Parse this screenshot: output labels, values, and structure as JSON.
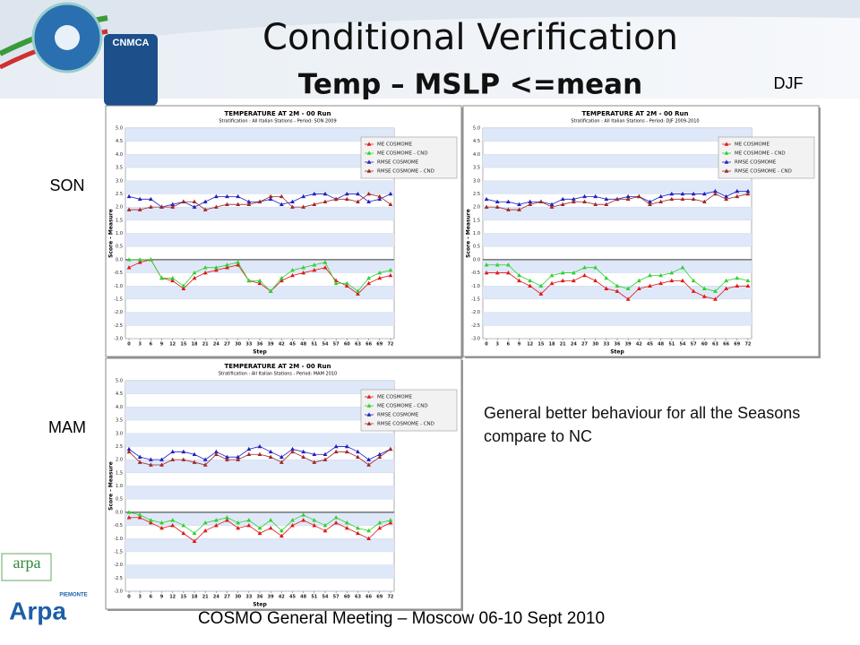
{
  "slide": {
    "title": "Conditional Verification",
    "subtitle": "Temp – MSLP <=mean",
    "labels": {
      "djf": "DJF",
      "son": "SON",
      "mam": "MAM"
    },
    "note": "General better behaviour for all the Seasons compare to NC",
    "footer": "COSMO General Meeting – Moscow 06-10 Sept 2010",
    "logos": {
      "cnmca": "CNMCA",
      "arpa": "arpa",
      "arpa_piemonte": "Arpa",
      "piemonte": "PIEMONTE"
    }
  },
  "chart_data": [
    {
      "type": "line",
      "title": "TEMPERATURE AT 2M - 00 Run",
      "subtitle": "Stratification : All Italian Stations - Period: SON 2009",
      "x_label": "Step",
      "y_label": "Score - Measure",
      "x": [
        0,
        3,
        6,
        9,
        12,
        15,
        18,
        21,
        24,
        27,
        30,
        33,
        36,
        39,
        42,
        45,
        48,
        51,
        54,
        57,
        60,
        63,
        66,
        69,
        72
      ],
      "xticks": [
        0,
        3,
        6,
        9,
        12,
        15,
        18,
        21,
        24,
        27,
        30,
        33,
        36,
        39,
        42,
        45,
        48,
        51,
        54,
        57,
        60,
        63,
        66,
        69,
        72
      ],
      "xlim": [
        -1,
        73
      ],
      "ylim": [
        -3,
        5
      ],
      "yticks": [
        {
          "value": -3,
          "label": "-3.0"
        },
        {
          "value": -2.5,
          "label": "-2.5"
        },
        {
          "value": -2,
          "label": "-2.0"
        },
        {
          "value": -1.5,
          "label": "-1.5"
        },
        {
          "value": -1,
          "label": "-1.0"
        },
        {
          "value": -0.5,
          "label": "-0.5"
        },
        {
          "value": 0,
          "label": "0.0"
        },
        {
          "value": 0.5,
          "label": "0.5"
        },
        {
          "value": 1,
          "label": "1.0"
        },
        {
          "value": 1.5,
          "label": "1.5"
        },
        {
          "value": 2,
          "label": "2.0"
        },
        {
          "value": 2.5,
          "label": "2.5"
        },
        {
          "value": 3,
          "label": "3.0"
        },
        {
          "value": 3.5,
          "label": "3.5"
        },
        {
          "value": 4,
          "label": "4.0"
        },
        {
          "value": 4.5,
          "label": "4.5"
        },
        {
          "value": 5,
          "label": "5.0"
        }
      ],
      "series": [
        {
          "name": "ME COSMOME",
          "color": "#e01818",
          "values": [
            -0.3,
            -0.1,
            0.0,
            -0.7,
            -0.8,
            -1.1,
            -0.7,
            -0.5,
            -0.4,
            -0.3,
            -0.2,
            -0.8,
            -0.9,
            -1.2,
            -0.8,
            -0.6,
            -0.5,
            -0.4,
            -0.3,
            -0.8,
            -1.0,
            -1.3,
            -0.9,
            -0.7,
            -0.6
          ]
        },
        {
          "name": "ME COSMOME - CND",
          "color": "#30d030",
          "values": [
            0.0,
            0.0,
            0.0,
            -0.7,
            -0.7,
            -1.0,
            -0.5,
            -0.3,
            -0.3,
            -0.2,
            -0.1,
            -0.8,
            -0.8,
            -1.2,
            -0.7,
            -0.4,
            -0.3,
            -0.2,
            -0.1,
            -0.9,
            -0.9,
            -1.2,
            -0.7,
            -0.5,
            -0.4
          ]
        },
        {
          "name": "RMSE COSMOME",
          "color": "#2020c0",
          "values": [
            2.4,
            2.3,
            2.3,
            2.0,
            2.1,
            2.2,
            2.0,
            2.2,
            2.4,
            2.4,
            2.4,
            2.2,
            2.2,
            2.3,
            2.1,
            2.2,
            2.4,
            2.5,
            2.5,
            2.3,
            2.5,
            2.5,
            2.2,
            2.3,
            2.5
          ]
        },
        {
          "name": "RMSE COSMOME - CND",
          "color": "#a02828",
          "values": [
            1.9,
            1.9,
            2.0,
            2.0,
            2.0,
            2.2,
            2.2,
            1.9,
            2.0,
            2.1,
            2.1,
            2.1,
            2.2,
            2.4,
            2.4,
            2.0,
            2.0,
            2.1,
            2.2,
            2.3,
            2.3,
            2.2,
            2.5,
            2.4,
            2.1
          ]
        }
      ]
    },
    {
      "type": "line",
      "title": "TEMPERATURE AT 2M - 00 Run",
      "subtitle": "Stratification : All Italian Stations - Period: DJF 2009-2010",
      "x_label": "Step",
      "y_label": "Score - Measure",
      "x": [
        0,
        3,
        6,
        9,
        12,
        15,
        18,
        21,
        24,
        27,
        30,
        33,
        36,
        39,
        42,
        45,
        48,
        51,
        54,
        57,
        60,
        63,
        66,
        69,
        72
      ],
      "xticks": [
        0,
        3,
        6,
        9,
        12,
        15,
        18,
        21,
        24,
        27,
        30,
        33,
        36,
        39,
        42,
        45,
        48,
        51,
        54,
        57,
        60,
        63,
        66,
        69,
        72
      ],
      "xlim": [
        -1,
        73
      ],
      "ylim": [
        -3,
        5
      ],
      "yticks": [
        {
          "value": -3,
          "label": "-3.0"
        },
        {
          "value": -2.5,
          "label": "-2.5"
        },
        {
          "value": -2,
          "label": "-2.0"
        },
        {
          "value": -1.5,
          "label": "-1.5"
        },
        {
          "value": -1,
          "label": "-1.0"
        },
        {
          "value": -0.5,
          "label": "-0.5"
        },
        {
          "value": 0,
          "label": "0.0"
        },
        {
          "value": 0.5,
          "label": "0.5"
        },
        {
          "value": 1,
          "label": "1.0"
        },
        {
          "value": 1.5,
          "label": "1.5"
        },
        {
          "value": 2,
          "label": "2.0"
        },
        {
          "value": 2.5,
          "label": "2.5"
        },
        {
          "value": 3,
          "label": "3.0"
        },
        {
          "value": 3.5,
          "label": "3.5"
        },
        {
          "value": 4,
          "label": "4.0"
        },
        {
          "value": 4.5,
          "label": "4.5"
        },
        {
          "value": 5,
          "label": "5.0"
        }
      ],
      "series": [
        {
          "name": "ME COSMOME",
          "color": "#e01818",
          "values": [
            -0.5,
            -0.5,
            -0.5,
            -0.8,
            -1.0,
            -1.3,
            -0.9,
            -0.8,
            -0.8,
            -0.6,
            -0.8,
            -1.1,
            -1.2,
            -1.5,
            -1.1,
            -1.0,
            -0.9,
            -0.8,
            -0.8,
            -1.2,
            -1.4,
            -1.5,
            -1.1,
            -1.0,
            -1.0
          ]
        },
        {
          "name": "ME COSMOME - CND",
          "color": "#30d030",
          "values": [
            -0.2,
            -0.2,
            -0.2,
            -0.6,
            -0.8,
            -1.0,
            -0.6,
            -0.5,
            -0.5,
            -0.3,
            -0.3,
            -0.7,
            -1.0,
            -1.1,
            -0.8,
            -0.6,
            -0.6,
            -0.5,
            -0.3,
            -0.8,
            -1.1,
            -1.2,
            -0.8,
            -0.7,
            -0.8
          ]
        },
        {
          "name": "RMSE COSMOME",
          "color": "#2020c0",
          "values": [
            2.3,
            2.2,
            2.2,
            2.1,
            2.2,
            2.2,
            2.1,
            2.3,
            2.3,
            2.4,
            2.4,
            2.3,
            2.3,
            2.4,
            2.4,
            2.2,
            2.4,
            2.5,
            2.5,
            2.5,
            2.5,
            2.6,
            2.4,
            2.6,
            2.6
          ]
        },
        {
          "name": "RMSE COSMOME - CND",
          "color": "#a02828",
          "values": [
            2.0,
            2.0,
            1.9,
            1.9,
            2.1,
            2.2,
            2.0,
            2.1,
            2.2,
            2.2,
            2.1,
            2.1,
            2.3,
            2.3,
            2.4,
            2.1,
            2.2,
            2.3,
            2.3,
            2.3,
            2.2,
            2.5,
            2.3,
            2.4,
            2.5
          ]
        }
      ]
    },
    {
      "type": "line",
      "title": "TEMPERATURE AT 2M - 00 Run",
      "subtitle": "Stratification : All Italian Stations - Period: MAM 2010",
      "x_label": "Step",
      "y_label": "Score - Measure",
      "x": [
        0,
        3,
        6,
        9,
        12,
        15,
        18,
        21,
        24,
        27,
        30,
        33,
        36,
        39,
        42,
        45,
        48,
        51,
        54,
        57,
        60,
        63,
        66,
        69,
        72
      ],
      "xticks": [
        0,
        3,
        6,
        9,
        12,
        15,
        18,
        21,
        24,
        27,
        30,
        33,
        36,
        39,
        42,
        45,
        48,
        51,
        54,
        57,
        60,
        63,
        66,
        69,
        72
      ],
      "xlim": [
        -1,
        73
      ],
      "ylim": [
        -3,
        5
      ],
      "yticks": [
        {
          "value": -3,
          "label": "-3.0"
        },
        {
          "value": -2.5,
          "label": "-2.5"
        },
        {
          "value": -2,
          "label": "-2.0"
        },
        {
          "value": -1.5,
          "label": "-1.5"
        },
        {
          "value": -1,
          "label": "-1.0"
        },
        {
          "value": -0.5,
          "label": "-0.5"
        },
        {
          "value": 0,
          "label": "0.0"
        },
        {
          "value": 0.5,
          "label": "0.5"
        },
        {
          "value": 1,
          "label": "1.0"
        },
        {
          "value": 1.5,
          "label": "1.5"
        },
        {
          "value": 2,
          "label": "2.0"
        },
        {
          "value": 2.5,
          "label": "2.5"
        },
        {
          "value": 3,
          "label": "3.0"
        },
        {
          "value": 3.5,
          "label": "3.5"
        },
        {
          "value": 4,
          "label": "4.0"
        },
        {
          "value": 4.5,
          "label": "4.5"
        },
        {
          "value": 5,
          "label": "5.0"
        }
      ],
      "series": [
        {
          "name": "ME COSMOME",
          "color": "#e01818",
          "values": [
            -0.2,
            -0.2,
            -0.4,
            -0.6,
            -0.5,
            -0.8,
            -1.1,
            -0.7,
            -0.5,
            -0.3,
            -0.6,
            -0.5,
            -0.8,
            -0.6,
            -0.9,
            -0.5,
            -0.3,
            -0.5,
            -0.7,
            -0.4,
            -0.6,
            -0.8,
            -1.0,
            -0.6,
            -0.4
          ]
        },
        {
          "name": "ME COSMOME - CND",
          "color": "#30d030",
          "values": [
            0.0,
            -0.1,
            -0.3,
            -0.4,
            -0.3,
            -0.5,
            -0.8,
            -0.4,
            -0.3,
            -0.2,
            -0.4,
            -0.3,
            -0.6,
            -0.3,
            -0.7,
            -0.3,
            -0.1,
            -0.3,
            -0.5,
            -0.2,
            -0.4,
            -0.6,
            -0.7,
            -0.4,
            -0.3
          ]
        },
        {
          "name": "RMSE COSMOME",
          "color": "#2020c0",
          "values": [
            2.4,
            2.1,
            2.0,
            2.0,
            2.3,
            2.3,
            2.2,
            2.0,
            2.3,
            2.1,
            2.1,
            2.4,
            2.5,
            2.3,
            2.1,
            2.4,
            2.3,
            2.2,
            2.2,
            2.5,
            2.5,
            2.3,
            2.0,
            2.2,
            2.4
          ]
        },
        {
          "name": "RMSE COSMOME - CND",
          "color": "#a02828",
          "values": [
            2.3,
            1.9,
            1.8,
            1.8,
            2.0,
            2.0,
            1.9,
            1.8,
            2.2,
            2.0,
            2.0,
            2.2,
            2.2,
            2.1,
            1.9,
            2.3,
            2.1,
            1.9,
            2.0,
            2.3,
            2.3,
            2.1,
            1.8,
            2.1,
            2.4
          ]
        }
      ]
    }
  ]
}
